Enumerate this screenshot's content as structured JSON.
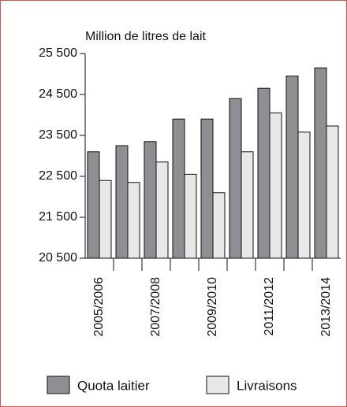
{
  "chart_data": {
    "type": "bar",
    "y_axis_label": "Million de litres de lait",
    "categories": [
      "2005/2006",
      null,
      "2007/2008",
      null,
      "2009/2010",
      null,
      "2011/2012",
      null,
      "2013/2014"
    ],
    "series": [
      {
        "name": "Quota laitier",
        "color": "#8e8e93",
        "values": [
          23100,
          23250,
          23350,
          23900,
          23900,
          24400,
          24650,
          24950,
          25150
        ]
      },
      {
        "name": "Livraisons",
        "color": "#e8e8e8",
        "values": [
          22400,
          22350,
          22850,
          22550,
          22100,
          23100,
          24050,
          23580,
          23730
        ]
      }
    ],
    "ylim": [
      20500,
      25500
    ],
    "yticks": [
      {
        "value": 20500,
        "label": "20 500"
      },
      {
        "value": 21500,
        "label": "21 500"
      },
      {
        "value": 22500,
        "label": "22 500"
      },
      {
        "value": 23500,
        "label": "23 500"
      },
      {
        "value": 24500,
        "label": "24 500"
      },
      {
        "value": 25500,
        "label": "25 500"
      }
    ],
    "grid": false,
    "legend": "bottom"
  }
}
